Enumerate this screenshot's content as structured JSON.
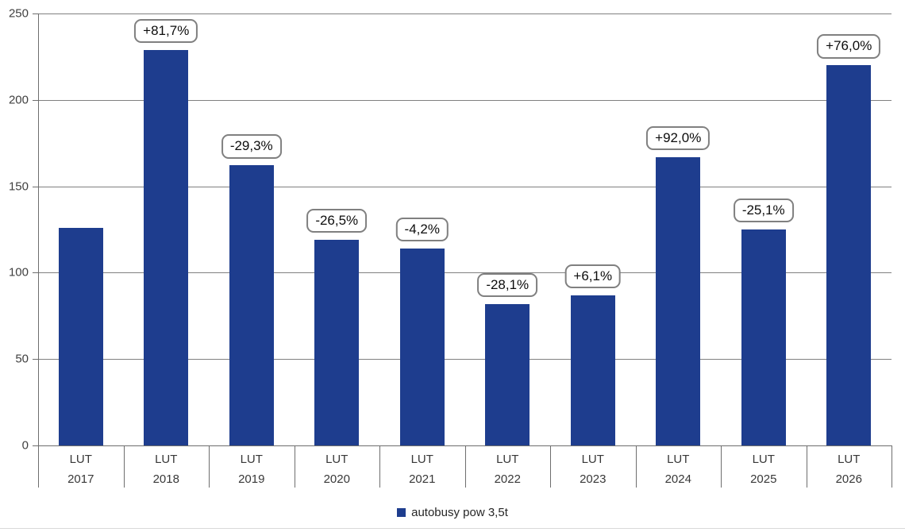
{
  "chart_data": {
    "type": "bar",
    "title": "",
    "legend": "autobusy pow 3,5t",
    "categories": [
      {
        "line1": "LUT",
        "line2": "2017"
      },
      {
        "line1": "LUT",
        "line2": "2018"
      },
      {
        "line1": "LUT",
        "line2": "2019"
      },
      {
        "line1": "LUT",
        "line2": "2020"
      },
      {
        "line1": "LUT",
        "line2": "2021"
      },
      {
        "line1": "LUT",
        "line2": "2022"
      },
      {
        "line1": "LUT",
        "line2": "2023"
      },
      {
        "line1": "LUT",
        "line2": "2024"
      },
      {
        "line1": "LUT",
        "line2": "2025"
      },
      {
        "line1": "LUT",
        "line2": "2026"
      }
    ],
    "values": [
      126,
      229,
      162,
      119,
      114,
      82,
      87,
      167,
      125,
      220
    ],
    "change_labels": [
      "",
      "+81,7%",
      "-29,3%",
      "-26,5%",
      "-4,2%",
      "-28,1%",
      "+6,1%",
      "+92,0%",
      "-25,1%",
      "+76,0%"
    ],
    "ylim": [
      0,
      250
    ],
    "yticks": [
      0,
      50,
      100,
      150,
      200,
      250
    ],
    "xlabel": "",
    "ylabel": "",
    "grid": true,
    "legend_position": "bottom-center",
    "bar_color": "#1e3d8e",
    "grid_color": "#808080",
    "axis_color": "#6e6e6e",
    "label_box_border_color": "#808080",
    "text_color": "#383838"
  }
}
